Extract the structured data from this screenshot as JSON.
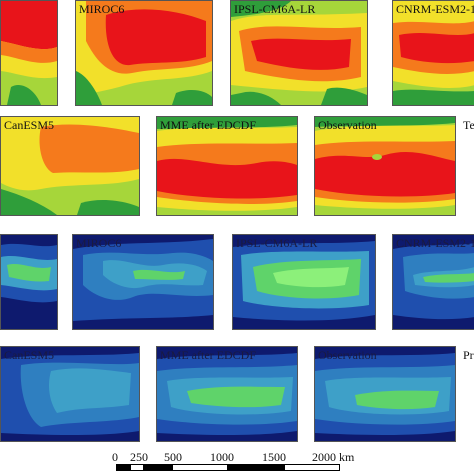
{
  "temperature_models": {
    "miroc6": "MIROC6",
    "ipsl": "IPSL-CM6A-LR",
    "cnrm": "CNRM-ESM2-1",
    "canesm5": "CanESM5",
    "mme": "MME after EDCDF",
    "observation": "Observation",
    "side_label": "Te"
  },
  "precip_models": {
    "miroc6": "MIROC6",
    "ipsl": "IPSL-CM6A-LR",
    "cnrm": "CNRM-ESM2-1",
    "canesm5": "CanESM5",
    "mme": "MME after EDCDF",
    "observation": "Observation",
    "side_label": "Pr"
  },
  "scale_bar": {
    "labels": [
      "0",
      "250",
      "500",
      "1000",
      "1500",
      "2000 km"
    ]
  },
  "colors": {
    "temp_hot": "#e8141a",
    "temp_warm": "#f57a1c",
    "temp_mid": "#f2e02a",
    "temp_cool": "#a6d63a",
    "temp_cold": "#2f9e3a",
    "precip_dry": "#0e1a6e",
    "precip_low": "#1f4fae",
    "precip_mid": "#3ea0c8",
    "precip_wet": "#5fd36a",
    "precip_wettest": "#8cf07a"
  }
}
